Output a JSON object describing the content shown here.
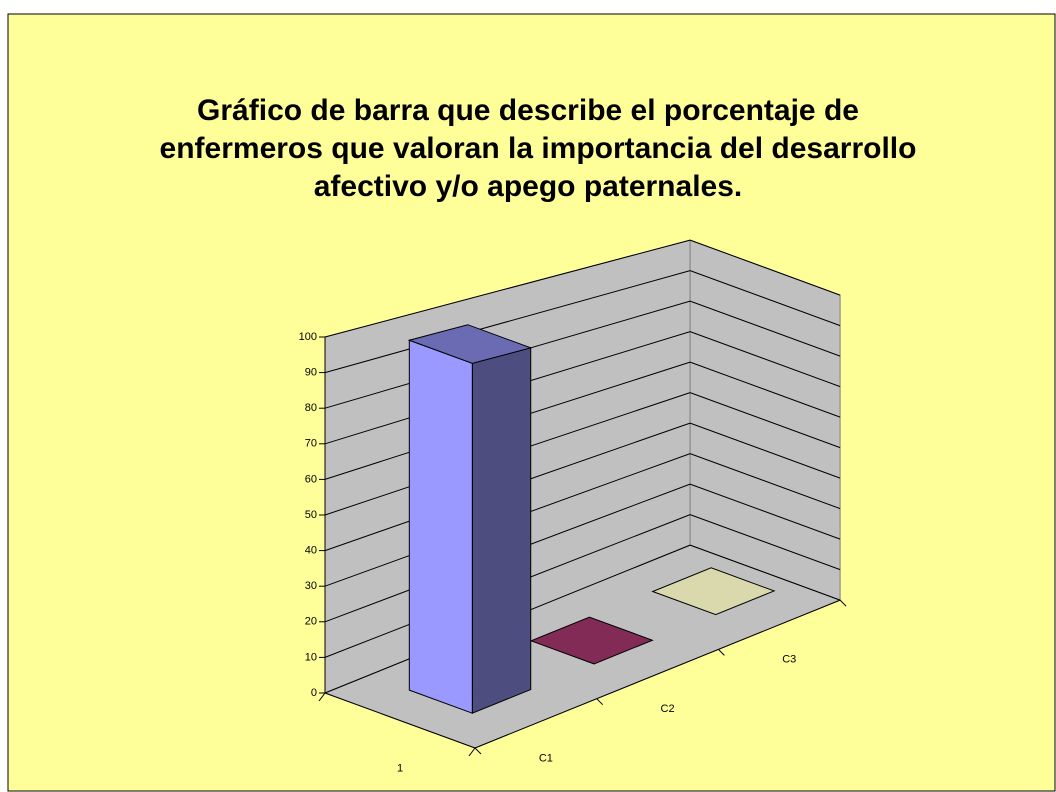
{
  "chart_data": {
    "type": "bar3d",
    "title": [
      "Gráfico de barra que describe el porcentaje de",
      "enfermeros que valoran la importancia del desarrollo",
      "afectivo y/o apego paternales."
    ],
    "categories": [
      "1"
    ],
    "series": [
      {
        "name": "C1",
        "color": "#9999ff",
        "values": [
          100
        ]
      },
      {
        "name": "C2",
        "color": "#993366",
        "values": [
          0
        ]
      },
      {
        "name": "C3",
        "color": "#ffffcc",
        "values": [
          0
        ]
      }
    ],
    "ylim": [
      0,
      100
    ],
    "yticks": [
      0,
      10,
      20,
      30,
      40,
      50,
      60,
      70,
      80,
      90,
      100
    ],
    "grid": true
  }
}
